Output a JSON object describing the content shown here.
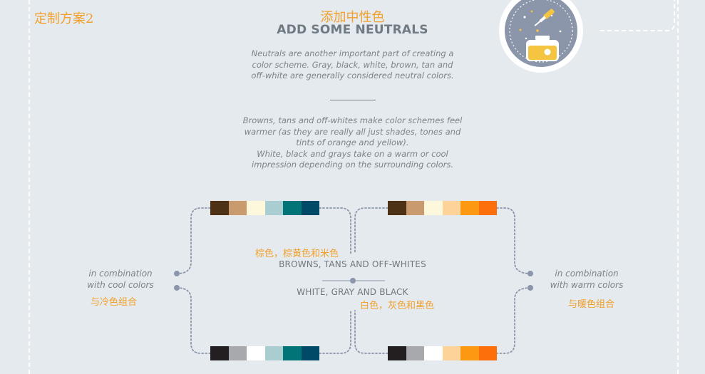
{
  "plan_title": "定制方案2",
  "header": {
    "cn_title": "添加中性色",
    "en_title": "ADD SOME NEUTRALS"
  },
  "intro": {
    "lines": [
      "Neutrals are another important part of creating a",
      "color scheme. Gray, black, white, brown, tan and",
      "off-white are generally considered neutral colors."
    ]
  },
  "detail": {
    "lines": [
      "Browns, tans and off-whites make color schemes feel",
      "warmer (as they are really all just shades, tones and",
      "tints of orange and yellow).",
      "White, black and grays take on a warm or cool",
      "impression depending on the surrounding colors."
    ]
  },
  "left": {
    "en_line1": "in combination",
    "en_line2": "with cool colors",
    "cn": "与冷色组合"
  },
  "right": {
    "en_line1": "in combination",
    "en_line2": "with warm colors",
    "cn": "与暖色组合"
  },
  "center": {
    "browns_cn": "棕色，棕黄色和米色",
    "browns_en": "BROWNS, TANS AND OFF-WHITES",
    "whites_en": "WHITE, GRAY AND BLACK",
    "whites_cn": "白色，灰色和黑色"
  },
  "palettes": {
    "top_left": [
      "#4e3216",
      "#c99a6e",
      "#fdf8dc",
      "#a9cdd0",
      "#007476",
      "#004a68"
    ],
    "top_right": [
      "#4e3216",
      "#c99a6e",
      "#fdf8dc",
      "#fdd39a",
      "#fd9812",
      "#fd6f0a"
    ],
    "bottom_left": [
      "#231f20",
      "#a7a9ac",
      "#ffffff",
      "#a9cdd0",
      "#007476",
      "#004a68"
    ],
    "bottom_right": [
      "#231f20",
      "#a7a9ac",
      "#ffffff",
      "#fdd39a",
      "#fd9812",
      "#fd6f0a"
    ]
  },
  "colors": {
    "background": "#e4eaee",
    "accent_orange": "#f2a02b",
    "connector": "#8b96ab"
  },
  "icons": {
    "badge": "dropper-ink-bottle-icon"
  }
}
